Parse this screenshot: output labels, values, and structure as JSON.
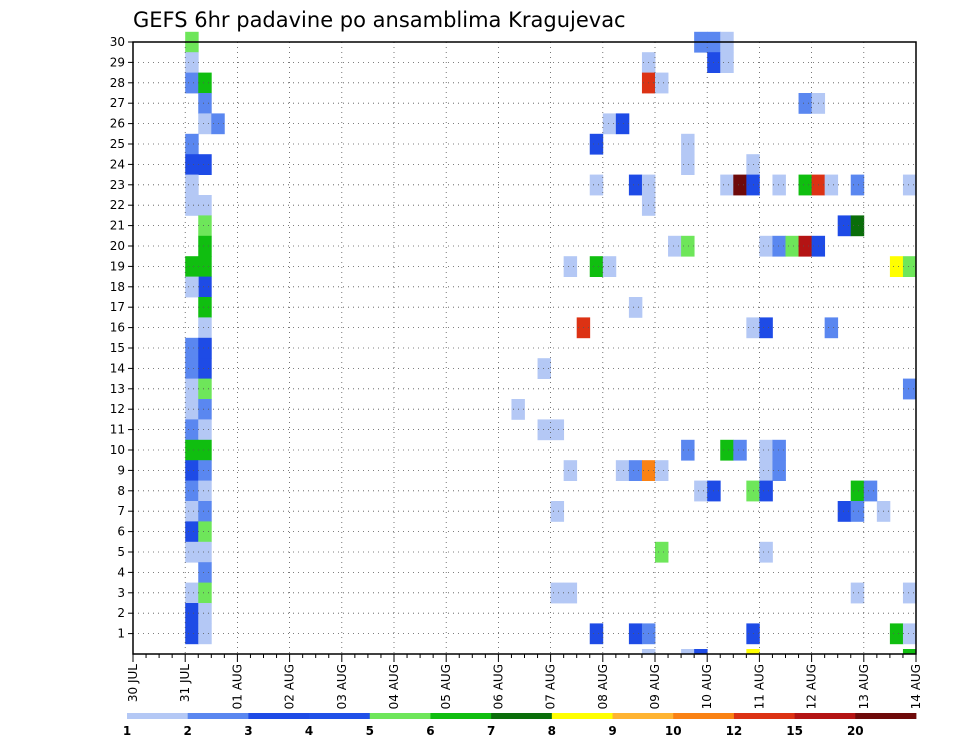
{
  "chart_data": {
    "type": "heatmap",
    "title": "GEFS 6hr padavine po ansamblima Kragujevac",
    "xlabel": "",
    "ylabel": "",
    "x_ticks": [
      "30 JUL",
      "31 JUL",
      "01 AUG",
      "02 AUG",
      "03 AUG",
      "04 AUG",
      "05 AUG",
      "06 AUG",
      "07 AUG",
      "08 AUG",
      "09 AUG",
      "10 AUG",
      "11 AUG",
      "12 AUG",
      "13 AUG",
      "14 AUG"
    ],
    "x_steps_per_day": 4,
    "x_step_hours": 6,
    "y_ticks": [
      1,
      2,
      3,
      4,
      5,
      6,
      7,
      8,
      9,
      10,
      11,
      12,
      13,
      14,
      15,
      16,
      17,
      18,
      19,
      20,
      21,
      22,
      23,
      24,
      25,
      26,
      27,
      28,
      29,
      30
    ],
    "ylim": [
      0,
      30
    ],
    "grid": true,
    "legend_position": "bottom",
    "legend": {
      "labels": [
        "1",
        "2",
        "3",
        "4",
        "5",
        "6",
        "7",
        "8",
        "9",
        "10",
        "12",
        "15",
        "20"
      ],
      "colors": [
        "#b4c8f5",
        "#5a87f0",
        "#1e4be6",
        "#2050e8",
        "#6ee65a",
        "#10be10",
        "#0a6e0a",
        "#ffff00",
        "#ffb432",
        "#fa8214",
        "#dc3214",
        "#b41414",
        "#6e0a0a"
      ]
    },
    "cells": [
      [
        4,
        30,
        5
      ],
      [
        4,
        29,
        1
      ],
      [
        4,
        28,
        2
      ],
      [
        5,
        28,
        6
      ],
      [
        5,
        27,
        2
      ],
      [
        5,
        26,
        1
      ],
      [
        6,
        26,
        2
      ],
      [
        4,
        25,
        2
      ],
      [
        4,
        24,
        3
      ],
      [
        5,
        24,
        3
      ],
      [
        4,
        23,
        1
      ],
      [
        4,
        22,
        1
      ],
      [
        5,
        22,
        1
      ],
      [
        5,
        21,
        5
      ],
      [
        5,
        20,
        6
      ],
      [
        4,
        19,
        6
      ],
      [
        5,
        19,
        6
      ],
      [
        5,
        18,
        3
      ],
      [
        4,
        18,
        1
      ],
      [
        5,
        17,
        6
      ],
      [
        5,
        16,
        1
      ],
      [
        5,
        15,
        1
      ],
      [
        4,
        15,
        2
      ],
      [
        5,
        15,
        3
      ],
      [
        4,
        14,
        2
      ],
      [
        5,
        14,
        3
      ],
      [
        4,
        13,
        1
      ],
      [
        5,
        13,
        5
      ],
      [
        4,
        12,
        1
      ],
      [
        5,
        12,
        2
      ],
      [
        4,
        11,
        2
      ],
      [
        5,
        11,
        1
      ],
      [
        4,
        10,
        6
      ],
      [
        5,
        10,
        6
      ],
      [
        4,
        9,
        3
      ],
      [
        5,
        9,
        2
      ],
      [
        4,
        8,
        2
      ],
      [
        5,
        8,
        1
      ],
      [
        4,
        7,
        1
      ],
      [
        5,
        7,
        2
      ],
      [
        4,
        6,
        3
      ],
      [
        5,
        6,
        5
      ],
      [
        4,
        5,
        1
      ],
      [
        5,
        5,
        1
      ],
      [
        5,
        4,
        2
      ],
      [
        4,
        3,
        1
      ],
      [
        5,
        3,
        5
      ],
      [
        4,
        2,
        3
      ],
      [
        5,
        2,
        1
      ],
      [
        4,
        1,
        3
      ],
      [
        5,
        1,
        1
      ],
      [
        43,
        30,
        2
      ],
      [
        44,
        30,
        2
      ],
      [
        45,
        30,
        1
      ],
      [
        44,
        29,
        3
      ],
      [
        45,
        29,
        1
      ],
      [
        39,
        29,
        1
      ],
      [
        39,
        28,
        11
      ],
      [
        40,
        28,
        1
      ],
      [
        51,
        27,
        2
      ],
      [
        52,
        27,
        1
      ],
      [
        36,
        26,
        1
      ],
      [
        37,
        26,
        3
      ],
      [
        35,
        25,
        3
      ],
      [
        42,
        25,
        1
      ],
      [
        42,
        24,
        1
      ],
      [
        47,
        24,
        1
      ],
      [
        35,
        23,
        1
      ],
      [
        38,
        23,
        3
      ],
      [
        39,
        23,
        1
      ],
      [
        45,
        23,
        1
      ],
      [
        46,
        23,
        13
      ],
      [
        47,
        23,
        3
      ],
      [
        49,
        23,
        1
      ],
      [
        51,
        23,
        6
      ],
      [
        52,
        23,
        11
      ],
      [
        53,
        23,
        1
      ],
      [
        55,
        23,
        2
      ],
      [
        59,
        23,
        1
      ],
      [
        39,
        22,
        1
      ],
      [
        54,
        21,
        3
      ],
      [
        55,
        21,
        7
      ],
      [
        41,
        20,
        1
      ],
      [
        42,
        20,
        5
      ],
      [
        48,
        20,
        1
      ],
      [
        49,
        20,
        2
      ],
      [
        50,
        20,
        5
      ],
      [
        51,
        20,
        12
      ],
      [
        52,
        20,
        3
      ],
      [
        33,
        19,
        1
      ],
      [
        35,
        19,
        6
      ],
      [
        36,
        19,
        1
      ],
      [
        58,
        19,
        8
      ],
      [
        59,
        19,
        5
      ],
      [
        38,
        17,
        1
      ],
      [
        34,
        16,
        11
      ],
      [
        47,
        16,
        1
      ],
      [
        48,
        16,
        3
      ],
      [
        53,
        16,
        2
      ],
      [
        31,
        14,
        1
      ],
      [
        59,
        13,
        2
      ],
      [
        29,
        12,
        1
      ],
      [
        31,
        11,
        1
      ],
      [
        32,
        11,
        1
      ],
      [
        42,
        10,
        2
      ],
      [
        45,
        10,
        6
      ],
      [
        46,
        10,
        2
      ],
      [
        48,
        10,
        1
      ],
      [
        49,
        10,
        2
      ],
      [
        33,
        9,
        1
      ],
      [
        37,
        9,
        1
      ],
      [
        38,
        9,
        2
      ],
      [
        39,
        9,
        10
      ],
      [
        40,
        9,
        1
      ],
      [
        48,
        9,
        1
      ],
      [
        49,
        9,
        2
      ],
      [
        43,
        8,
        1
      ],
      [
        44,
        8,
        3
      ],
      [
        47,
        8,
        5
      ],
      [
        48,
        8,
        3
      ],
      [
        55,
        8,
        6
      ],
      [
        56,
        8,
        2
      ],
      [
        32,
        7,
        1
      ],
      [
        54,
        7,
        3
      ],
      [
        55,
        7,
        2
      ],
      [
        57,
        7,
        1
      ],
      [
        40,
        5,
        5
      ],
      [
        48,
        5,
        1
      ],
      [
        32,
        3,
        1
      ],
      [
        33,
        3,
        1
      ],
      [
        55,
        3,
        1
      ],
      [
        59,
        3,
        1
      ],
      [
        35,
        1,
        3
      ],
      [
        38,
        1,
        3
      ],
      [
        39,
        1,
        2
      ],
      [
        47,
        1,
        3
      ],
      [
        58,
        1,
        6
      ],
      [
        59,
        1,
        1
      ],
      [
        39,
        0,
        1
      ],
      [
        42,
        0,
        1
      ],
      [
        43,
        0,
        3
      ],
      [
        47,
        0,
        8
      ],
      [
        59,
        0,
        6
      ]
    ]
  }
}
